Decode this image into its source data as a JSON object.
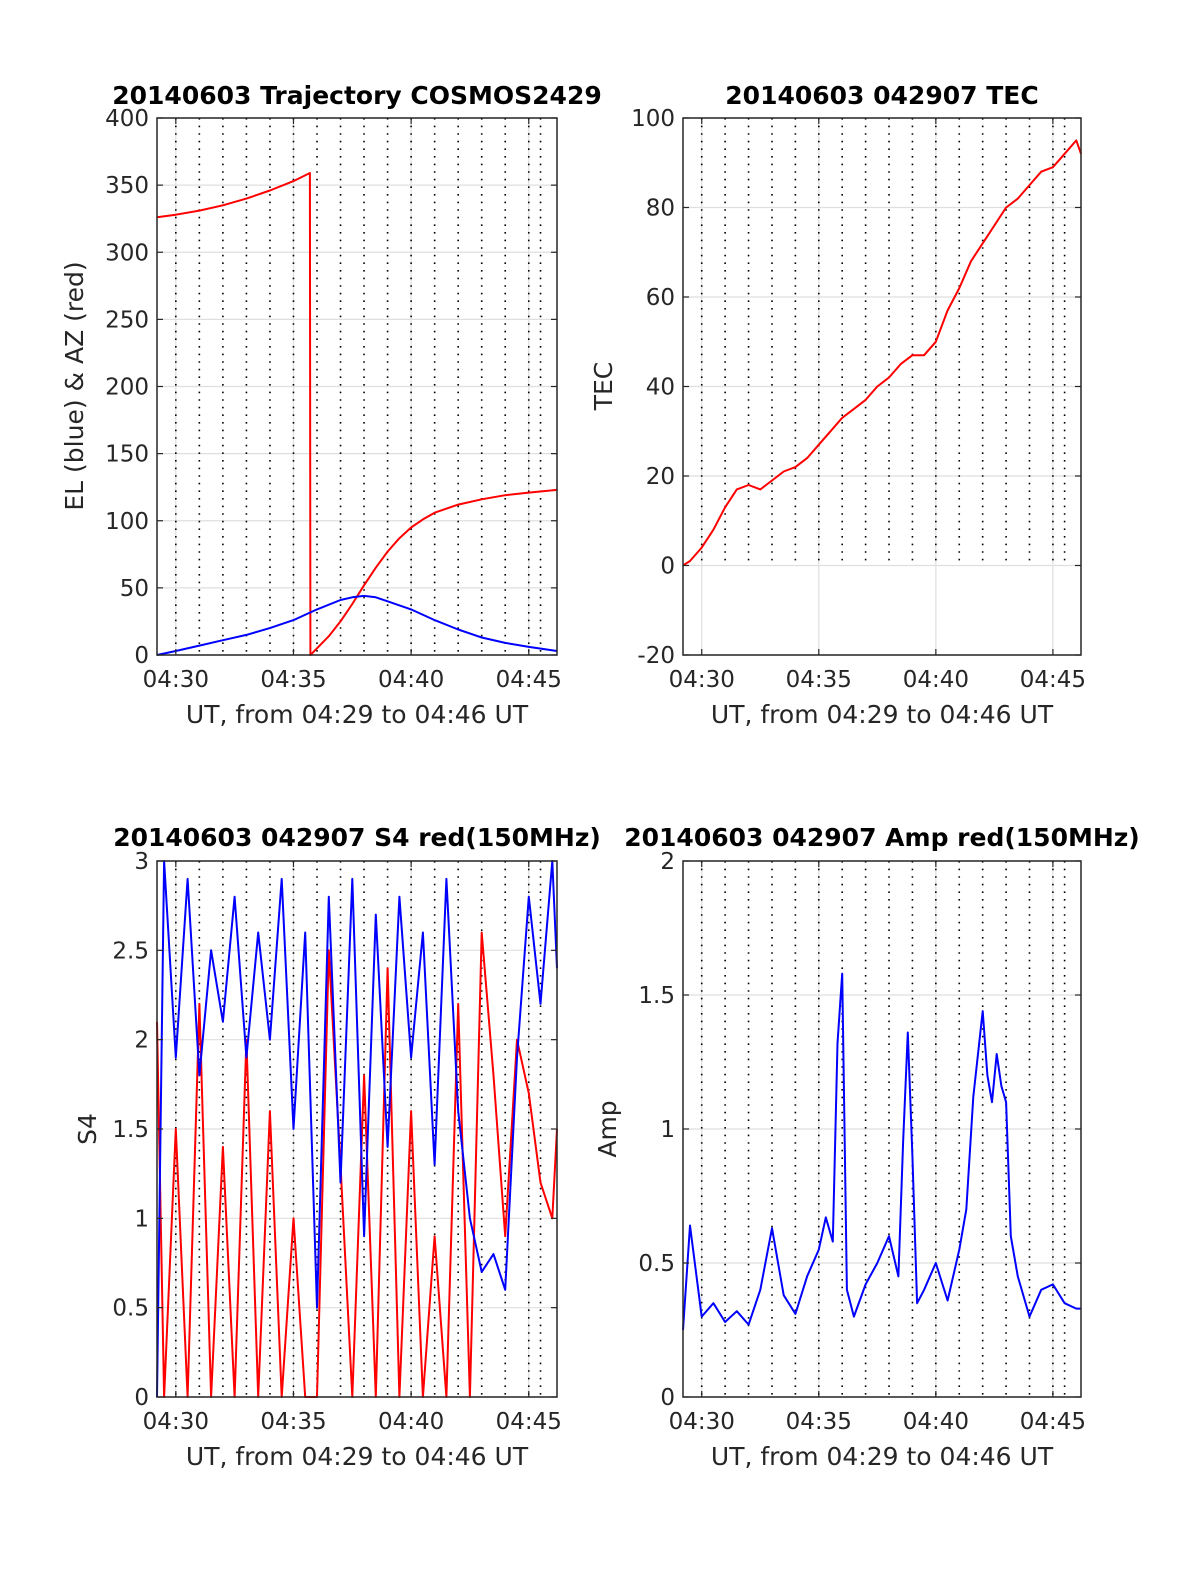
{
  "figure": {
    "background": "#ffffff",
    "colors": {
      "red": "#ff0000",
      "blue": "#0000ff",
      "axis": "#262626",
      "grid": "#dfdfdf"
    }
  },
  "chart_data": [
    {
      "id": "trajectory",
      "type": "line",
      "title": "20140603 Trajectory COSMOS2429",
      "xlabel": "UT, from 04:29 to 04:46 UT",
      "ylabel": "EL (blue) & AZ (red)",
      "xlim": [
        29.2,
        46.2
      ],
      "ylim": [
        0,
        400
      ],
      "xticks": [
        30,
        35,
        40,
        45
      ],
      "xticklabels": [
        "04:30",
        "04:35",
        "04:40",
        "04:45"
      ],
      "yticks": [
        0,
        50,
        100,
        150,
        200,
        250,
        300,
        350,
        400
      ],
      "yticklabels": [
        "0",
        "50",
        "100",
        "150",
        "200",
        "250",
        "300",
        "350",
        "400"
      ],
      "grid": "on",
      "minor_dotted_x": [
        30.0,
        31.0,
        32.0,
        33.0,
        34.0,
        35.0,
        36.0,
        37.0,
        38.0,
        39.0,
        40.0,
        41.0,
        42.0,
        43.0,
        44.0,
        45.0,
        45.5
      ],
      "series": [
        {
          "color": "#ff0000",
          "x": [
            29.2,
            30,
            31,
            32,
            33,
            34,
            35,
            35.7,
            35.72,
            36,
            36.5,
            37,
            37.5,
            38,
            38.5,
            39,
            39.5,
            40,
            40.5,
            41,
            42,
            43,
            44,
            45,
            46.2
          ],
          "y": [
            326,
            328,
            331,
            335,
            340,
            346,
            353,
            359,
            0,
            5,
            14,
            25,
            38,
            52,
            65,
            77,
            87,
            95,
            101,
            106,
            112,
            116,
            119,
            121,
            123
          ]
        },
        {
          "color": "#0000ff",
          "x": [
            29.2,
            30,
            31,
            32,
            33,
            34,
            35,
            36,
            37,
            37.5,
            38,
            38.5,
            39,
            40,
            41,
            42,
            43,
            44,
            45,
            46.2
          ],
          "y": [
            0,
            3,
            7,
            11,
            15,
            20,
            26,
            34,
            41,
            43,
            44,
            43,
            40,
            34,
            26,
            19,
            13,
            9,
            6,
            3
          ]
        }
      ]
    },
    {
      "id": "tec",
      "type": "line",
      "title": "20140603 042907 TEC",
      "xlabel": "UT, from 04:29 to 04:46 UT",
      "ylabel": "TEC",
      "xlim": [
        29.2,
        46.2
      ],
      "ylim": [
        -20,
        100
      ],
      "xticks": [
        30,
        35,
        40,
        45
      ],
      "xticklabels": [
        "04:30",
        "04:35",
        "04:40",
        "04:45"
      ],
      "yticks": [
        -20,
        0,
        20,
        40,
        60,
        80,
        100
      ],
      "yticklabels": [
        "-20",
        "0",
        "20",
        "40",
        "60",
        "80",
        "100"
      ],
      "grid": "on",
      "minor_dotted_x": [
        30.0,
        31.0,
        32.0,
        33.0,
        34.0,
        35.0,
        36.0,
        37.0,
        38.0,
        39.0,
        40.0,
        41.0,
        42.0,
        43.0,
        44.0,
        45.0,
        45.5
      ],
      "series": [
        {
          "color": "#ff0000",
          "x": [
            29.2,
            29.5,
            30,
            30.5,
            31,
            31.5,
            32,
            32.5,
            33,
            33.5,
            34,
            34.5,
            35,
            35.5,
            36,
            36.5,
            37,
            37.5,
            38,
            38.5,
            39,
            39.5,
            40,
            40.5,
            41,
            41.5,
            42,
            42.5,
            43,
            43.5,
            44,
            44.5,
            45,
            45.5,
            46,
            46.2
          ],
          "y": [
            0,
            1,
            4,
            8,
            13,
            17,
            18,
            17,
            19,
            21,
            22,
            24,
            27,
            30,
            33,
            35,
            37,
            40,
            42,
            45,
            47,
            47,
            50,
            57,
            62,
            68,
            72,
            76,
            80,
            82,
            85,
            88,
            89,
            92,
            95,
            92
          ]
        }
      ]
    },
    {
      "id": "s4",
      "type": "line",
      "title": "20140603 042907 S4 red(150MHz)",
      "xlabel": "UT, from 04:29 to 04:46 UT",
      "ylabel": "S4",
      "xlim": [
        29.2,
        46.2
      ],
      "ylim": [
        0,
        3
      ],
      "xticks": [
        30,
        35,
        40,
        45
      ],
      "xticklabels": [
        "04:30",
        "04:35",
        "04:40",
        "04:45"
      ],
      "yticks": [
        0,
        0.5,
        1,
        1.5,
        2,
        2.5,
        3
      ],
      "yticklabels": [
        "0",
        "0.5",
        "1",
        "1.5",
        "2",
        "2.5",
        "3"
      ],
      "grid": "on",
      "minor_dotted_x": [
        30.0,
        31.0,
        32.0,
        33.0,
        34.0,
        35.0,
        36.0,
        37.0,
        38.0,
        39.0,
        40.0,
        41.0,
        42.0,
        43.0,
        44.0,
        45.0,
        45.5
      ],
      "series": [
        {
          "color": "#ff0000",
          "x": [
            29.2,
            29.5,
            30,
            30.5,
            31,
            31.5,
            32,
            32.5,
            33,
            33.5,
            34,
            34.5,
            35,
            35.5,
            36,
            36.5,
            37,
            37.5,
            38,
            38.5,
            39,
            39.5,
            40,
            40.5,
            41,
            41.5,
            42,
            42.5,
            43,
            43.5,
            44,
            44.5,
            45,
            45.5,
            46,
            46.2
          ],
          "y": [
            2.1,
            0,
            1.5,
            0,
            2.2,
            0,
            1.4,
            0,
            2.0,
            0,
            1.6,
            0,
            1.0,
            0,
            0,
            2.5,
            1.3,
            0,
            1.8,
            0,
            2.4,
            0,
            1.6,
            0,
            0.9,
            0,
            2.2,
            0,
            2.6,
            1.8,
            0.9,
            2.0,
            1.7,
            1.2,
            1.0,
            1.5
          ]
        },
        {
          "color": "#0000ff",
          "x": [
            29.2,
            29.5,
            30,
            30.5,
            31,
            31.5,
            32,
            32.5,
            33,
            33.5,
            34,
            34.5,
            35,
            35.5,
            36,
            36.5,
            37,
            37.5,
            38,
            38.5,
            39,
            39.5,
            40,
            40.5,
            41,
            41.5,
            42,
            42.5,
            43,
            43.5,
            44,
            44.5,
            45,
            45.5,
            46,
            46.2
          ],
          "y": [
            0,
            3,
            1.9,
            2.9,
            1.8,
            2.5,
            2.1,
            2.8,
            1.9,
            2.6,
            2.0,
            2.9,
            1.5,
            2.6,
            0.5,
            2.8,
            1.2,
            2.9,
            0.9,
            2.7,
            1.4,
            2.8,
            1.9,
            2.6,
            1.3,
            2.9,
            1.6,
            1.0,
            0.7,
            0.8,
            0.6,
            1.9,
            2.8,
            2.2,
            3.0,
            2.4
          ]
        }
      ]
    },
    {
      "id": "amp",
      "type": "line",
      "title": "20140603 042907 Amp red(150MHz)",
      "xlabel": "UT, from 04:29 to 04:46 UT",
      "ylabel": "Amp",
      "xlim": [
        29.2,
        46.2
      ],
      "ylim": [
        0,
        2
      ],
      "xticks": [
        30,
        35,
        40,
        45
      ],
      "xticklabels": [
        "04:30",
        "04:35",
        "04:40",
        "04:45"
      ],
      "yticks": [
        0,
        0.5,
        1,
        1.5,
        2
      ],
      "yticklabels": [
        "0",
        "0.5",
        "1",
        "1.5",
        "2"
      ],
      "grid": "on",
      "minor_dotted_x": [
        30.0,
        31.0,
        32.0,
        33.0,
        34.0,
        35.0,
        36.0,
        37.0,
        38.0,
        39.0,
        40.0,
        41.0,
        42.0,
        43.0,
        44.0,
        45.0,
        45.5
      ],
      "series": [
        {
          "color": "#0000ff",
          "x": [
            29.2,
            29.5,
            30,
            30.5,
            31,
            31.5,
            32,
            32.5,
            33,
            33.5,
            34,
            34.5,
            35,
            35.3,
            35.6,
            35.8,
            36.0,
            36.2,
            36.5,
            37,
            37.5,
            38,
            38.4,
            38.6,
            38.8,
            39.0,
            39.2,
            39.5,
            40,
            40.5,
            41,
            41.3,
            41.6,
            42.0,
            42.2,
            42.4,
            42.6,
            42.8,
            43.0,
            43.2,
            43.5,
            44,
            44.5,
            45,
            45.5,
            46,
            46.2
          ],
          "y": [
            0.25,
            0.64,
            0.3,
            0.35,
            0.28,
            0.32,
            0.27,
            0.4,
            0.63,
            0.38,
            0.31,
            0.45,
            0.55,
            0.67,
            0.58,
            1.32,
            1.58,
            0.4,
            0.3,
            0.42,
            0.5,
            0.6,
            0.45,
            0.95,
            1.36,
            0.9,
            0.35,
            0.4,
            0.5,
            0.36,
            0.55,
            0.7,
            1.12,
            1.44,
            1.2,
            1.1,
            1.28,
            1.16,
            1.1,
            0.6,
            0.45,
            0.3,
            0.4,
            0.42,
            0.35,
            0.33,
            0.33
          ]
        }
      ]
    }
  ]
}
